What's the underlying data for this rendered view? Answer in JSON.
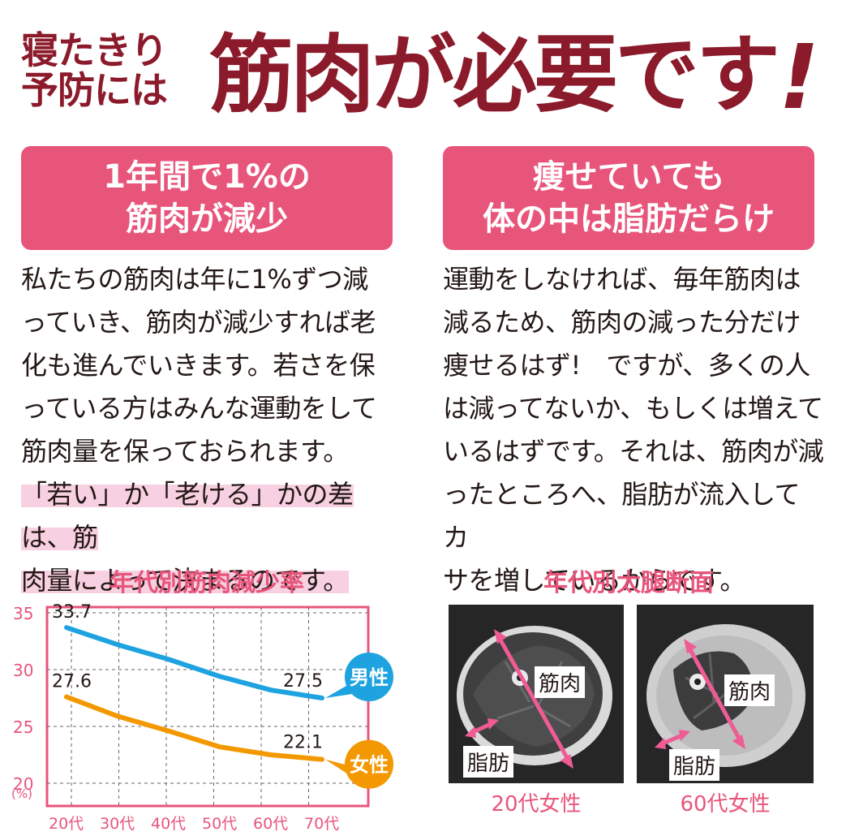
{
  "title": {
    "small_line1": "寝たきり",
    "small_line2": "予防には",
    "main": "筋肉が必要です",
    "exclamation": "!"
  },
  "left": {
    "heading_line1": "1年間で1%の",
    "heading_line2": "筋肉が減少",
    "body_lines": [
      "私たちの筋肉は年に1%ずつ減",
      "っていき、筋肉が減少すれば老",
      "化も進んでいきます。若さを保",
      "っている方はみんな運動をして",
      "筋肉量を保っておられます。"
    ],
    "highlight_lines": [
      "「若い」か「老ける」かの差は、筋",
      "肉量によって決まるのです。"
    ]
  },
  "right": {
    "heading_line1": "痩せていても",
    "heading_line2": "体の中は脂肪だらけ",
    "body_lines": [
      "運動をしなければ、毎年筋肉は",
      "減るため、筋肉の減った分だけ",
      "痩せるはず!　ですが、多くの人",
      "は減ってないか、もしくは増えて",
      "いるはずです。それは、筋肉が減",
      "ったところへ、脂肪が流入してカ",
      "サを増しているからです。"
    ]
  },
  "chart_caption": "年代別筋肉減少率",
  "photo_caption": "年代別太腿断面",
  "chart_data": {
    "type": "line",
    "title": "年代別筋肉減少率",
    "categories": [
      "20代",
      "30代",
      "40代",
      "50代",
      "60代",
      "70代"
    ],
    "yticks": [
      "35",
      "30",
      "25",
      "20"
    ],
    "yunit": "(%)",
    "ylim": [
      18,
      35.5
    ],
    "grid": true,
    "series": [
      {
        "name": "男性",
        "color": "#1ea3e0",
        "values": [
          33.7,
          32.2,
          30.9,
          29.4,
          28.2,
          27.5
        ],
        "start_label": "33.7",
        "end_label": "27.5"
      },
      {
        "name": "女性",
        "color": "#f39800",
        "values": [
          27.6,
          25.9,
          24.6,
          23.2,
          22.5,
          22.1
        ],
        "start_label": "27.6",
        "end_label": "22.1"
      }
    ]
  },
  "photos": [
    {
      "caption": "20代女性",
      "muscle_label": "筋肉",
      "fat_label": "脂肪"
    },
    {
      "caption": "60代女性",
      "muscle_label": "筋肉",
      "fat_label": "脂肪"
    }
  ],
  "colors": {
    "title": "#8b1a2b",
    "accent": "#e8557b",
    "male": "#1ea3e0",
    "female": "#f39800"
  }
}
